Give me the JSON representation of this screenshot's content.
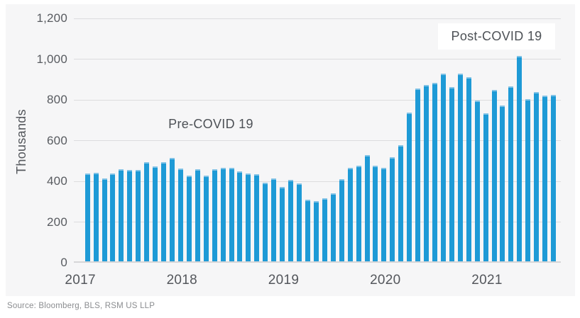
{
  "chart_data": {
    "type": "bar",
    "title": "",
    "xlabel": "",
    "ylabel": "Thousands",
    "unit": "Thousands",
    "ylim": [
      0,
      1200
    ],
    "y_ticks": [
      0,
      200,
      400,
      600,
      800,
      1000,
      1200
    ],
    "y_tick_labels": [
      "0",
      "200",
      "400",
      "600",
      "800",
      "1,000",
      "1,200"
    ],
    "x_tick_labels": [
      "2017",
      "2018",
      "2019",
      "2020",
      "2021"
    ],
    "grid": "horizontal",
    "legend": "none",
    "bar_color": "#1e9ad6",
    "panel_background": "#f6f6f7",
    "frequency": "monthly",
    "start_month": "2017-01",
    "end_month": "2021-08",
    "year_order": [
      "2017",
      "2018",
      "2019",
      "2020",
      "2021"
    ],
    "series": {
      "2017": [
        440,
        442,
        415,
        440,
        460,
        455,
        455,
        493,
        472,
        493,
        515,
        462
      ],
      "2018": [
        428,
        459,
        428,
        459,
        466,
        466,
        448,
        438,
        435,
        392,
        414,
        372
      ],
      "2019": [
        407,
        390,
        310,
        303,
        318,
        341,
        412,
        466,
        478,
        528,
        478,
        465
      ],
      "2020": [
        517,
        576,
        738,
        855,
        872,
        884,
        930,
        862,
        928,
        910,
        797,
        734
      ],
      "2021": [
        848,
        772,
        866,
        1016,
        803,
        838,
        821,
        824
      ]
    },
    "annotations": [
      {
        "text": "Pre-COVID 19",
        "boxed": false
      },
      {
        "text": "Post-COVID 19",
        "boxed": true
      }
    ]
  },
  "source": {
    "label": "Source: Bloomberg, BLS, RSM US LLP"
  }
}
